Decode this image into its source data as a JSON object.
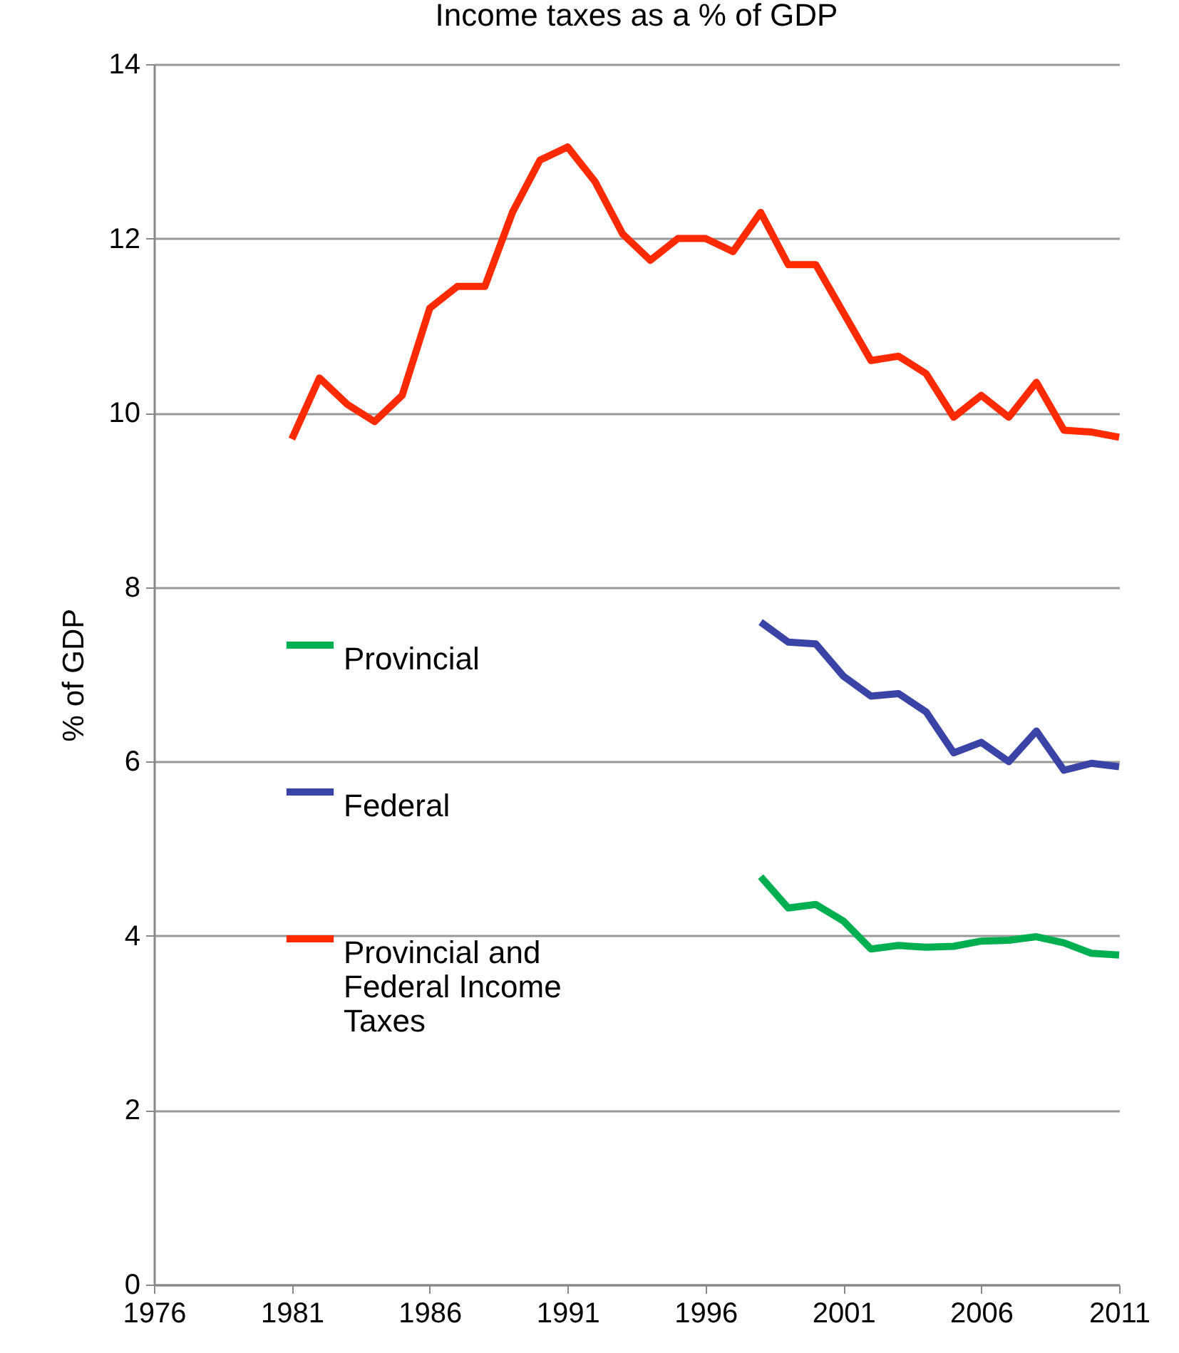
{
  "chart_data": {
    "type": "line",
    "title": "Income taxes as a % of GDP",
    "ylabel": "% of GDP",
    "xlim": [
      1976,
      2011
    ],
    "xticks": [
      1976,
      1981,
      1986,
      1991,
      1996,
      2001,
      2006,
      2011
    ],
    "ylim": [
      0,
      14
    ],
    "yticks": [
      0,
      2,
      4,
      6,
      8,
      10,
      12,
      14
    ],
    "grid": "y",
    "legend": "left",
    "line_style": "solid",
    "marker": "none",
    "series": [
      {
        "name": "Provincial",
        "color": "#00b050",
        "x": [
          1998,
          1999,
          2000,
          2001,
          2002,
          2003,
          2004,
          2005,
          2006,
          2007,
          2008,
          2009,
          2010,
          2011
        ],
        "values": [
          4.68,
          4.32,
          4.36,
          4.17,
          3.85,
          3.89,
          3.87,
          3.88,
          3.94,
          3.95,
          3.99,
          3.92,
          3.8,
          3.78
        ]
      },
      {
        "name": "Federal",
        "color": "#3a44a6",
        "x": [
          1998,
          1999,
          2000,
          2001,
          2002,
          2003,
          2004,
          2005,
          2006,
          2007,
          2008,
          2009,
          2010,
          2011
        ],
        "values": [
          7.6,
          7.37,
          7.35,
          6.98,
          6.75,
          6.78,
          6.57,
          6.1,
          6.22,
          6.0,
          6.35,
          5.9,
          5.98,
          5.94
        ]
      },
      {
        "name": "Provincial and Federal Income Taxes",
        "color": "#ff2a00",
        "x": [
          1981,
          1982,
          1983,
          1984,
          1985,
          1986,
          1987,
          1988,
          1989,
          1990,
          1991,
          1992,
          1993,
          1994,
          1995,
          1996,
          1997,
          1998,
          1999,
          2000,
          2001,
          2002,
          2003,
          2004,
          2005,
          2006,
          2007,
          2008,
          2009,
          2010,
          2011
        ],
        "values": [
          9.7,
          10.4,
          10.1,
          9.9,
          10.2,
          11.2,
          11.45,
          11.45,
          12.3,
          12.9,
          13.05,
          12.65,
          12.05,
          11.75,
          12.0,
          12.0,
          11.85,
          12.3,
          11.7,
          11.7,
          11.15,
          10.6,
          10.65,
          10.45,
          9.95,
          10.2,
          9.95,
          10.35,
          9.8,
          9.78,
          9.72
        ]
      }
    ]
  }
}
